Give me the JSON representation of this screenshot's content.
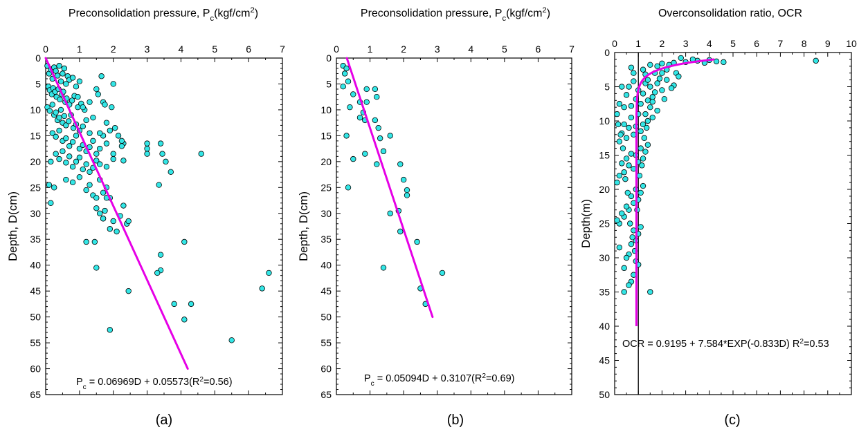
{
  "colors": {
    "marker_fill": "#33e6e6",
    "marker_edge": "#000000",
    "fit_line": "#e600e6",
    "axis": "#000000",
    "ref_line": "#000000"
  },
  "chart_data": [
    {
      "type": "scatter",
      "title_main": "Preconsolidation pressure, P",
      "title_sub": "c",
      "title_tail": "(kgf/cm",
      "title_sup": "2",
      "title_end": ")",
      "xlabel": "",
      "ylabel": "Depth, D(cm)",
      "xlim": [
        0,
        7
      ],
      "ylim": [
        0,
        65
      ],
      "x_ticks": [
        "0",
        "1",
        "2",
        "3",
        "4",
        "5",
        "6",
        "7"
      ],
      "y_ticks": [
        "0",
        "5",
        "10",
        "15",
        "20",
        "25",
        "30",
        "35",
        "40",
        "45",
        "50",
        "55",
        "60",
        "65"
      ],
      "panel_label": "(a)",
      "equation_prefix": "P",
      "equation_sub": "c",
      "equation_main": " = 0.06969D + 0.05573(R",
      "equation_sup": "2",
      "equation_end": "=0.56)",
      "fit": {
        "type": "linear",
        "x": [
          0.0,
          4.2
        ],
        "y": [
          0.0,
          60.0
        ]
      },
      "points": [
        [
          0.05,
          1.5
        ],
        [
          0.1,
          3.0
        ],
        [
          0.15,
          2.2
        ],
        [
          0.2,
          4.0
        ],
        [
          0.25,
          1.8
        ],
        [
          0.3,
          2.5
        ],
        [
          0.35,
          3.4
        ],
        [
          0.4,
          1.5
        ],
        [
          0.45,
          4.5
        ],
        [
          0.5,
          3.0
        ],
        [
          0.55,
          2.0
        ],
        [
          0.6,
          5.0
        ],
        [
          0.65,
          3.5
        ],
        [
          0.7,
          4.2
        ],
        [
          0.8,
          3.8
        ],
        [
          0.9,
          5.5
        ],
        [
          1.0,
          4.5
        ],
        [
          0.08,
          5.5
        ],
        [
          0.12,
          6.2
        ],
        [
          0.18,
          7.0
        ],
        [
          0.22,
          5.8
        ],
        [
          0.28,
          6.5
        ],
        [
          0.32,
          7.5
        ],
        [
          0.38,
          6.0
        ],
        [
          0.42,
          8.0
        ],
        [
          0.48,
          7.0
        ],
        [
          0.52,
          6.5
        ],
        [
          0.58,
          8.5
        ],
        [
          0.62,
          7.8
        ],
        [
          0.7,
          9.0
        ],
        [
          0.78,
          8.2
        ],
        [
          0.85,
          7.3
        ],
        [
          0.95,
          9.5
        ],
        [
          1.05,
          8.8
        ],
        [
          1.15,
          10.0
        ],
        [
          0.05,
          9.5
        ],
        [
          0.12,
          10.2
        ],
        [
          0.2,
          9.0
        ],
        [
          0.25,
          11.0
        ],
        [
          0.3,
          10.5
        ],
        [
          0.35,
          12.0
        ],
        [
          0.4,
          11.5
        ],
        [
          0.45,
          10.0
        ],
        [
          0.5,
          12.5
        ],
        [
          0.55,
          11.2
        ],
        [
          0.6,
          13.0
        ],
        [
          0.68,
          12.2
        ],
        [
          0.75,
          11.0
        ],
        [
          0.82,
          13.5
        ],
        [
          0.9,
          12.8
        ],
        [
          1.0,
          14.0
        ],
        [
          1.1,
          13.2
        ],
        [
          1.2,
          12.0
        ],
        [
          1.3,
          14.5
        ],
        [
          0.2,
          14.5
        ],
        [
          0.3,
          15.2
        ],
        [
          0.4,
          14.0
        ],
        [
          0.5,
          16.0
        ],
        [
          0.6,
          15.5
        ],
        [
          0.7,
          17.0
        ],
        [
          0.8,
          16.2
        ],
        [
          0.9,
          15.0
        ],
        [
          1.0,
          17.5
        ],
        [
          1.1,
          16.8
        ],
        [
          1.2,
          18.0
        ],
        [
          1.3,
          17.2
        ],
        [
          1.4,
          16.0
        ],
        [
          1.5,
          18.5
        ],
        [
          1.6,
          17.5
        ],
        [
          1.7,
          15.0
        ],
        [
          1.8,
          16.5
        ],
        [
          0.3,
          18.5
        ],
        [
          0.4,
          19.5
        ],
        [
          0.5,
          18.0
        ],
        [
          0.6,
          20.2
        ],
        [
          0.7,
          19.0
        ],
        [
          0.8,
          21.0
        ],
        [
          0.9,
          20.0
        ],
        [
          1.0,
          19.2
        ],
        [
          1.1,
          21.5
        ],
        [
          1.2,
          20.5
        ],
        [
          1.3,
          22.0
        ],
        [
          1.4,
          21.2
        ],
        [
          1.5,
          19.8
        ],
        [
          1.6,
          20.5
        ],
        [
          1.8,
          21.0
        ],
        [
          2.0,
          19.5
        ],
        [
          2.3,
          19.8
        ],
        [
          0.15,
          20.0
        ],
        [
          0.1,
          24.5
        ],
        [
          0.25,
          25.0
        ],
        [
          0.6,
          23.5
        ],
        [
          0.8,
          24.0
        ],
        [
          1.0,
          23.0
        ],
        [
          1.2,
          25.5
        ],
        [
          1.3,
          24.5
        ],
        [
          1.4,
          26.5
        ],
        [
          1.5,
          27.0
        ],
        [
          1.6,
          23.5
        ],
        [
          1.7,
          26.0
        ],
        [
          1.8,
          25.0
        ],
        [
          1.9,
          27.0
        ],
        [
          0.15,
          28.0
        ],
        [
          1.5,
          29.0
        ],
        [
          1.6,
          30.0
        ],
        [
          1.7,
          31.0
        ],
        [
          1.75,
          29.5
        ],
        [
          1.9,
          33.0
        ],
        [
          2.0,
          31.5
        ],
        [
          2.1,
          33.5
        ],
        [
          2.2,
          30.5
        ],
        [
          2.3,
          28.5
        ],
        [
          2.4,
          32.0
        ],
        [
          2.45,
          31.5
        ],
        [
          1.2,
          35.5
        ],
        [
          1.45,
          35.5
        ],
        [
          1.5,
          40.5
        ],
        [
          1.7,
          31.0
        ],
        [
          1.8,
          27.0
        ],
        [
          3.0,
          16.5
        ],
        [
          3.0,
          17.5
        ],
        [
          3.0,
          18.5
        ],
        [
          3.4,
          16.5
        ],
        [
          3.45,
          18.5
        ],
        [
          3.55,
          20.0
        ],
        [
          3.7,
          22.0
        ],
        [
          3.35,
          24.5
        ],
        [
          2.3,
          16.5
        ],
        [
          2.25,
          16.0
        ],
        [
          3.4,
          38.0
        ],
        [
          3.4,
          41.0
        ],
        [
          3.3,
          41.5
        ],
        [
          4.1,
          35.5
        ],
        [
          3.8,
          47.5
        ],
        [
          4.3,
          47.5
        ],
        [
          4.1,
          50.5
        ],
        [
          2.45,
          45.0
        ],
        [
          1.9,
          52.5
        ],
        [
          5.5,
          54.5
        ],
        [
          6.4,
          44.5
        ],
        [
          6.6,
          41.5
        ],
        [
          4.6,
          18.5
        ],
        [
          0.95,
          7.5
        ],
        [
          1.1,
          9.5
        ],
        [
          1.3,
          8.5
        ],
        [
          1.4,
          11.5
        ],
        [
          1.5,
          6.0
        ],
        [
          1.55,
          7.0
        ],
        [
          1.7,
          8.5
        ],
        [
          1.75,
          9.0
        ],
        [
          1.65,
          3.5
        ],
        [
          1.95,
          9.5
        ],
        [
          2.0,
          5.0
        ],
        [
          1.8,
          12.5
        ],
        [
          1.9,
          14.0
        ],
        [
          2.05,
          13.5
        ],
        [
          2.15,
          15.0
        ],
        [
          2.25,
          17.0
        ],
        [
          2.0,
          18.5
        ],
        [
          1.6,
          14.5
        ]
      ]
    },
    {
      "type": "scatter",
      "title_main": "Preconsolidation pressure, P",
      "title_sub": "c",
      "title_tail": "(kgf/cm",
      "title_sup": "2",
      "title_end": ")",
      "xlabel": "",
      "ylabel": "Depth, D(cm)",
      "xlim": [
        0,
        7
      ],
      "ylim": [
        0,
        65
      ],
      "x_ticks": [
        "0",
        "1",
        "2",
        "3",
        "4",
        "5",
        "6",
        "7"
      ],
      "y_ticks": [
        "0",
        "5",
        "10",
        "15",
        "20",
        "25",
        "30",
        "35",
        "40",
        "45",
        "50",
        "55",
        "60",
        "65"
      ],
      "panel_label": "(b)",
      "equation_prefix": "P",
      "equation_sub": "c",
      "equation_main": " = 0.05094D + 0.3107(R",
      "equation_sup": "2",
      "equation_end": "=0.69)",
      "fit": {
        "type": "linear",
        "x": [
          0.31,
          2.86
        ],
        "y": [
          0.0,
          50.0
        ]
      },
      "points": [
        [
          0.2,
          1.5
        ],
        [
          0.3,
          2.0
        ],
        [
          0.25,
          3.0
        ],
        [
          0.35,
          4.5
        ],
        [
          0.2,
          5.5
        ],
        [
          0.5,
          7.0
        ],
        [
          0.4,
          9.5
        ],
        [
          0.7,
          8.5
        ],
        [
          0.8,
          10.5
        ],
        [
          0.9,
          6.0
        ],
        [
          1.15,
          6.0
        ],
        [
          1.2,
          7.5
        ],
        [
          0.9,
          8.5
        ],
        [
          0.7,
          11.5
        ],
        [
          0.85,
          12.0
        ],
        [
          1.15,
          12.0
        ],
        [
          0.3,
          15.0
        ],
        [
          1.25,
          13.5
        ],
        [
          1.3,
          15.5
        ],
        [
          1.6,
          15.0
        ],
        [
          0.5,
          19.5
        ],
        [
          0.85,
          18.5
        ],
        [
          1.2,
          20.5
        ],
        [
          1.4,
          18.0
        ],
        [
          1.9,
          20.5
        ],
        [
          2.0,
          23.5
        ],
        [
          2.1,
          25.5
        ],
        [
          2.1,
          26.5
        ],
        [
          0.35,
          25.0
        ],
        [
          1.6,
          30.0
        ],
        [
          1.85,
          29.5
        ],
        [
          1.9,
          33.5
        ],
        [
          1.4,
          40.5
        ],
        [
          2.4,
          35.5
        ],
        [
          2.5,
          44.5
        ],
        [
          2.65,
          47.5
        ],
        [
          3.15,
          41.5
        ]
      ]
    },
    {
      "type": "scatter",
      "title_main": "Overconsolidation ratio, OCR",
      "title_sub": "",
      "title_tail": "",
      "title_sup": "",
      "title_end": "",
      "xlabel": "",
      "ylabel": "Depth(m)",
      "xlim": [
        0,
        10
      ],
      "ylim": [
        0,
        50
      ],
      "x_ticks": [
        "0",
        "1",
        "2",
        "3",
        "4",
        "5",
        "6",
        "7",
        "8",
        "9",
        "10"
      ],
      "y_ticks": [
        "0",
        "5",
        "10",
        "15",
        "20",
        "25",
        "30",
        "35",
        "40",
        "45",
        "50"
      ],
      "panel_label": "(c)",
      "equation_prefix": "",
      "equation_sub": "",
      "equation_main": "OCR = 0.9195 + 7.584*EXP(-0.833D) R",
      "equation_sup": "2",
      "equation_end": "=0.53",
      "reference_line_x": 1,
      "fit": {
        "type": "exponential",
        "a": 0.9195,
        "b": 7.584,
        "k": -0.833,
        "d_range": [
          1.0,
          40.0
        ]
      },
      "points": [
        [
          8.5,
          1.2
        ],
        [
          4.6,
          1.4
        ],
        [
          4.3,
          1.3
        ],
        [
          4.0,
          1.1
        ],
        [
          3.8,
          1.5
        ],
        [
          3.5,
          1.2
        ],
        [
          3.3,
          1.0
        ],
        [
          3.0,
          1.4
        ],
        [
          2.8,
          0.8
        ],
        [
          2.5,
          1.5
        ],
        [
          2.3,
          1.8
        ],
        [
          2.0,
          1.6
        ],
        [
          1.8,
          2.0
        ],
        [
          1.5,
          1.8
        ],
        [
          1.2,
          2.5
        ],
        [
          0.8,
          3.0
        ],
        [
          0.7,
          2.2
        ],
        [
          2.6,
          3.0
        ],
        [
          2.7,
          3.5
        ],
        [
          2.5,
          4.8
        ],
        [
          2.4,
          5.2
        ],
        [
          2.2,
          4.0
        ],
        [
          2.0,
          5.5
        ],
        [
          1.8,
          4.5
        ],
        [
          1.6,
          6.5
        ],
        [
          1.5,
          5.0
        ],
        [
          1.4,
          7.0
        ],
        [
          1.3,
          4.5
        ],
        [
          1.2,
          6.0
        ],
        [
          1.1,
          7.5
        ],
        [
          1.0,
          5.5
        ],
        [
          0.9,
          6.8
        ],
        [
          0.8,
          4.2
        ],
        [
          0.7,
          7.8
        ],
        [
          0.6,
          5.0
        ],
        [
          0.5,
          6.2
        ],
        [
          0.4,
          8.0
        ],
        [
          1.8,
          8.5
        ],
        [
          1.6,
          9.5
        ],
        [
          1.4,
          10.0
        ],
        [
          1.3,
          9.0
        ],
        [
          1.2,
          10.5
        ],
        [
          1.1,
          11.5
        ],
        [
          1.0,
          9.0
        ],
        [
          0.9,
          10.8
        ],
        [
          0.8,
          12.0
        ],
        [
          0.7,
          9.5
        ],
        [
          0.6,
          11.0
        ],
        [
          0.5,
          12.5
        ],
        [
          0.4,
          10.5
        ],
        [
          0.3,
          11.8
        ],
        [
          0.2,
          13.0
        ],
        [
          1.4,
          13.5
        ],
        [
          1.3,
          14.5
        ],
        [
          1.2,
          15.5
        ],
        [
          1.1,
          14.0
        ],
        [
          1.0,
          16.0
        ],
        [
          0.9,
          15.0
        ],
        [
          0.8,
          17.0
        ],
        [
          0.7,
          14.8
        ],
        [
          0.6,
          16.5
        ],
        [
          0.5,
          15.5
        ],
        [
          0.4,
          17.5
        ],
        [
          0.3,
          16.2
        ],
        [
          0.2,
          18.0
        ],
        [
          0.1,
          19.0
        ],
        [
          1.2,
          19.5
        ],
        [
          1.1,
          20.5
        ],
        [
          1.0,
          21.5
        ],
        [
          0.9,
          20.0
        ],
        [
          0.8,
          22.0
        ],
        [
          0.7,
          21.0
        ],
        [
          0.6,
          23.0
        ],
        [
          0.5,
          22.5
        ],
        [
          0.4,
          24.0
        ],
        [
          0.3,
          23.5
        ],
        [
          0.2,
          25.0
        ],
        [
          0.1,
          24.5
        ],
        [
          0.2,
          28.5
        ],
        [
          1.1,
          25.5
        ],
        [
          1.0,
          26.5
        ],
        [
          0.9,
          27.5
        ],
        [
          0.8,
          26.0
        ],
        [
          0.7,
          28.0
        ],
        [
          0.6,
          29.5
        ],
        [
          0.5,
          30.0
        ],
        [
          0.4,
          31.5
        ],
        [
          0.9,
          30.5
        ],
        [
          1.0,
          31.0
        ],
        [
          0.8,
          32.5
        ],
        [
          0.7,
          33.5
        ],
        [
          0.6,
          34.0
        ],
        [
          0.4,
          35.0
        ],
        [
          1.5,
          35.0
        ],
        [
          0.3,
          5.0
        ],
        [
          0.2,
          7.5
        ],
        [
          0.1,
          9.0
        ],
        [
          0.15,
          10.5
        ],
        [
          0.25,
          12.0
        ],
        [
          0.35,
          14.0
        ],
        [
          0.45,
          18.5
        ],
        [
          0.55,
          20.5
        ],
        [
          0.65,
          25.0
        ],
        [
          0.75,
          27.0
        ],
        [
          0.85,
          29.0
        ],
        [
          0.95,
          23.0
        ],
        [
          1.05,
          18.0
        ],
        [
          1.15,
          16.5
        ],
        [
          1.25,
          12.5
        ],
        [
          1.35,
          11.0
        ],
        [
          2.0,
          3.0
        ],
        [
          2.2,
          2.5
        ],
        [
          1.9,
          3.8
        ],
        [
          1.7,
          5.8
        ],
        [
          1.6,
          7.2
        ],
        [
          1.5,
          8.0
        ],
        [
          1.4,
          4.0
        ],
        [
          1.3,
          3.2
        ],
        [
          2.1,
          6.8
        ],
        [
          1.7,
          3.0
        ]
      ]
    }
  ]
}
